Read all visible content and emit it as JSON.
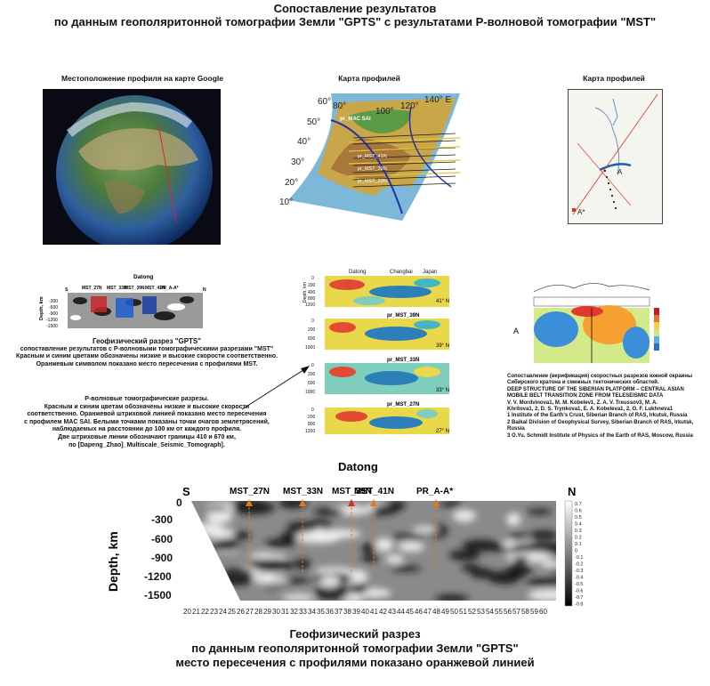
{
  "header": {
    "line1": "Сопоставление результатов",
    "line2": "по данным геополяритонной томографии Земли \"GPTS\"  с результатами P-волновой томографии \"MST\""
  },
  "panels": {
    "google_title": "Местоположение профиля на карте Google",
    "map1_title": "Карта профилей",
    "map2_title": "Карта профилей",
    "map1_lat_labels": [
      "60°",
      "50°",
      "40°",
      "30°",
      "20°",
      "10°"
    ],
    "map1_lon_labels": [
      "80°",
      "100°",
      "120°",
      "140° E"
    ],
    "map1_profiles": [
      "pr_MST_41N",
      "pr_MST_39N",
      "pr_MST_33N"
    ],
    "map1_mac": "pr_MAC SAI",
    "map2_label_a": "A",
    "map2_label_a2": "A*"
  },
  "mini_section": {
    "title": "Datong",
    "ylabel": "Depth, km",
    "yticks": [
      "-300",
      "-600",
      "-900",
      "-1200",
      "-1500"
    ],
    "profiles": [
      "MST_27N",
      "MST_33N",
      "MST_39N",
      "MST_41N",
      "PR_A-A*"
    ],
    "left": "S",
    "right": "N"
  },
  "gpts_caption": {
    "line1": "Геофизический разрез \"GPTS\"",
    "line2": "сопоставление результатов  с P-волновыми томографическими разрезами \"MST\"",
    "line3": "Красным и синим цветами обозначены низкие и высокие скорости соответственно.",
    "line4": "Оранжевым символом показано место пересечения  с профилями MST."
  },
  "pwave_caption": {
    "line1": "P-волновые томографические разрезы.",
    "line2": "Красным и синим цветам обозначены низкие и высокие скорости",
    "line3": "соответственно. Оранжевой штриховой линией показано место пересечения",
    "line4": "с профилем MAC SAI. Белыми точками показаны точки очагов землетрясений,",
    "line5": "наблюдаемых на расстоянии до 100 км от каждого профиля.",
    "line6": "Две штриховые линии обозначают границы 410 и 670 км,",
    "line7": "по [Dapeng_Zhao]_Multiscale_Seismic_Tomograph]."
  },
  "mst_sections": {
    "top_labels": [
      "Datong",
      "Changbai",
      "Japan"
    ],
    "ylabel": "Depth, km",
    "panels": [
      {
        "name": "",
        "lat": "41° N",
        "yticks": [
          "0",
          "200",
          "400",
          "800",
          "1200"
        ]
      },
      {
        "name": "pr_MST_39N",
        "lat": "39° N",
        "yticks": [
          "0",
          "200",
          "600",
          "1000"
        ]
      },
      {
        "name": "pr_MST_33N",
        "lat": "33° N",
        "yticks": [
          "0",
          "200",
          "600",
          "1000"
        ]
      },
      {
        "name": "pr_MST_27N",
        "lat": "27° N",
        "yticks": [
          "0",
          "200",
          "800",
          "1200"
        ]
      }
    ]
  },
  "right_caption": {
    "line1": "Сопоставление (верификация) скоростных разрезов южной окраины",
    "line2": "Сибирского кратона и смежных тектонических областей.",
    "line3": "DEEP STRUCTURE OF THE SIBERIAN PLATFORM – CENTRAL ASIAN",
    "line4": "MOBILE BELT TRANSITION ZONE FROM TELESEISMIC DATA",
    "line5": "V. V. Mordvinova1, M. M. Kobelev1, Z. A. V. Treussov3, M. A.",
    "line6": "Khritova1, 2, D. S. Trynkova1, E. A. Kobeleva1, 2, O. F. Lukhneva1",
    "line7": "1 Institute of the Earth's Crust, Siberian Branch of RAS, Irkutsk, Russia",
    "line8": "2 Baikal Division of Geophysical Survey, Siberian Branch of RAS, Irkutsk, Russia",
    "line9": "3 O.Yu. Schmidt Institute of Physics of the Earth of RAS, Moscow, Russia",
    "vel_label": "A"
  },
  "main_section": {
    "title": "Datong",
    "left": "S",
    "right": "N",
    "ylabel": "Depth, km",
    "yticks": [
      "0",
      "-300",
      "-600",
      "-900",
      "-1200",
      "-1500"
    ],
    "profiles": [
      "MST_27N",
      "MST_33N",
      "MST_39N",
      "MST_41N",
      "PR_A-A*"
    ],
    "profile_x": [
      27,
      33,
      38.5,
      41,
      48
    ],
    "xticks": [
      20,
      21,
      22,
      23,
      24,
      25,
      26,
      27,
      28,
      29,
      30,
      31,
      32,
      33,
      34,
      35,
      36,
      37,
      38,
      39,
      40,
      41,
      42,
      43,
      44,
      45,
      46,
      47,
      48,
      49,
      50,
      51,
      52,
      53,
      54,
      55,
      56,
      57,
      58,
      59,
      60
    ],
    "colorbar": [
      "0.7",
      "0.6",
      "0.5",
      "0.4",
      "0.3",
      "0.2",
      "0.1",
      "0",
      "-0.1",
      "-0.2",
      "-0.3",
      "-0.4",
      "-0.5",
      "-0.6",
      "-0.7",
      "-0.8"
    ]
  },
  "footer": {
    "line1": "Геофизический разрез",
    "line2": "по данным геополяритонной томографии Земли \"GPTS\"",
    "line3": "место пересечения с профилями показано оранжевой линией"
  }
}
